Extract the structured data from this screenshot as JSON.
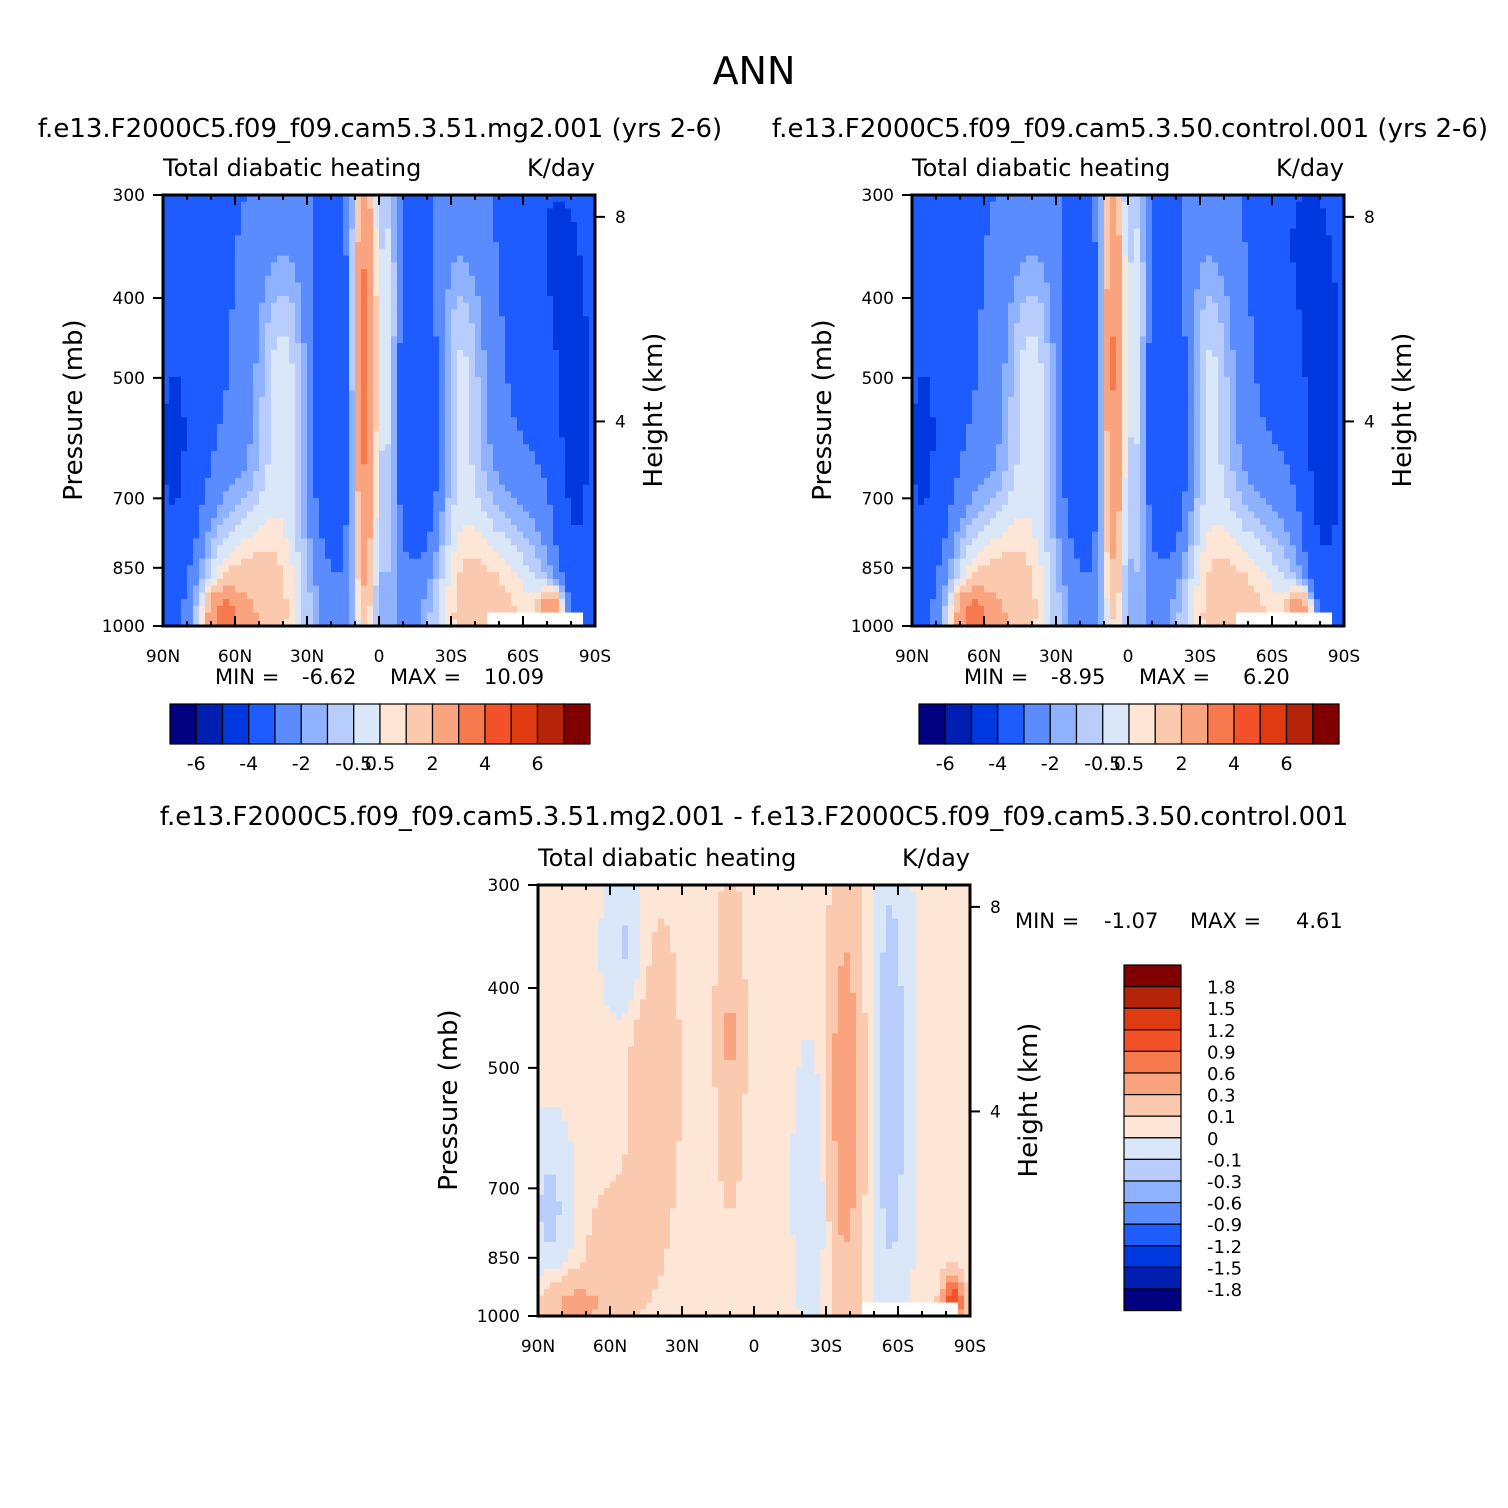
{
  "page_title": "ANN",
  "colors": {
    "neg": [
      "#000080",
      "#001fb0",
      "#0038df",
      "#1f5cff",
      "#5a8cff",
      "#8fb2ff",
      "#b8cdfb",
      "#d9e7f8"
    ],
    "pos": [
      "#fde6d6",
      "#fbc9ae",
      "#f9a37f",
      "#f77a4e",
      "#f2512a",
      "#e03a10",
      "#b52309",
      "#800000"
    ]
  },
  "chart_data": [
    {
      "type": "heatmap",
      "title": "f.e13.F2000C5.f09_f09.cam5.3.51.mg2.001  (yrs 2-6)",
      "left_label": "Total diabatic heating",
      "right_label": "K/day",
      "ylabel": "Pressure (mb)",
      "ylabel_right": "Height (km)",
      "xticks": [
        "90N",
        "60N",
        "30N",
        "0",
        "30S",
        "60S",
        "90S"
      ],
      "yticks": [
        "300",
        "400",
        "500",
        "700",
        "850",
        "1000"
      ],
      "ylim": [
        1000,
        300
      ],
      "y_log": true,
      "height_ticks": [
        "8",
        "4"
      ],
      "stats": {
        "min_label": "MIN =",
        "min": "-6.62",
        "max_label": "MAX =",
        "max": "10.09"
      },
      "colorbar": {
        "orientation": "horizontal",
        "labels": [
          "-6",
          "-4",
          "-2",
          "-0.5",
          "0.5",
          "2",
          "4",
          "6"
        ]
      }
    },
    {
      "type": "heatmap",
      "title": "f.e13.F2000C5.f09_f09.cam5.3.50.control.001  (yrs 2-6)",
      "left_label": "Total diabatic heating",
      "right_label": "K/day",
      "ylabel": "Pressure (mb)",
      "ylabel_right": "Height (km)",
      "xticks": [
        "90N",
        "60N",
        "30N",
        "0",
        "30S",
        "60S",
        "90S"
      ],
      "yticks": [
        "300",
        "400",
        "500",
        "700",
        "850",
        "1000"
      ],
      "ylim": [
        1000,
        300
      ],
      "y_log": true,
      "height_ticks": [
        "8",
        "4"
      ],
      "stats": {
        "min_label": "MIN =",
        "min": "-8.95",
        "max_label": "MAX =",
        "max": "6.20"
      },
      "colorbar": {
        "orientation": "horizontal",
        "labels": [
          "-6",
          "-4",
          "-2",
          "-0.5",
          "0.5",
          "2",
          "4",
          "6"
        ]
      }
    },
    {
      "type": "heatmap",
      "title": "f.e13.F2000C5.f09_f09.cam5.3.51.mg2.001 - f.e13.F2000C5.f09_f09.cam5.3.50.control.001",
      "left_label": "Total diabatic heating",
      "right_label": "K/day",
      "ylabel": "Pressure (mb)",
      "ylabel_right": "Height (km)",
      "xticks": [
        "90N",
        "60N",
        "30N",
        "0",
        "30S",
        "60S",
        "90S"
      ],
      "yticks": [
        "300",
        "400",
        "500",
        "700",
        "850",
        "1000"
      ],
      "ylim": [
        1000,
        300
      ],
      "y_log": true,
      "height_ticks": [
        "8",
        "4"
      ],
      "stats": {
        "min_label": "MIN =",
        "min": "-1.07",
        "max_label": "MAX =",
        "max": "4.61"
      },
      "colorbar": {
        "orientation": "vertical",
        "labels": [
          "1.8",
          "1.5",
          "1.2",
          "0.9",
          "0.6",
          "0.3",
          "0.1",
          "0",
          "-0.1",
          "-0.3",
          "-0.6",
          "-0.9",
          "-1.2",
          "-1.5",
          "-1.8"
        ]
      }
    }
  ]
}
